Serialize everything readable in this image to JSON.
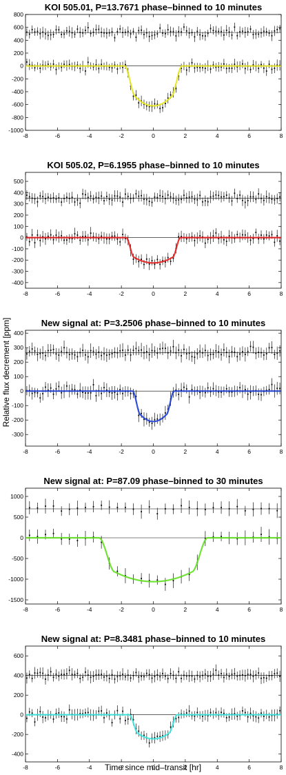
{
  "figure": {
    "ylabel": "Relative flux decrement [ppm]",
    "xlabel": "Time since mid–transit [hr]"
  },
  "chart_data": [
    {
      "type": "scatter",
      "title": "KOI 505.01, P=13.7671 phase–binned to 10 minutes",
      "xlim": [
        -8,
        8
      ],
      "ylim": [
        -1000,
        800
      ],
      "xticks": [
        -8,
        -6,
        -4,
        -2,
        0,
        2,
        4,
        6,
        8
      ],
      "yticks": [
        800,
        600,
        400,
        200,
        0,
        -200,
        -400,
        -600,
        -800,
        -1000
      ],
      "binned_data": true,
      "model": {
        "color": "#e8e820",
        "depth": 620,
        "total_duration": 3.6,
        "ingress": 0.7
      },
      "series": [
        {
          "role": "out-of-transit",
          "level": 520,
          "scatter": 85,
          "errorbar": 70
        },
        {
          "role": "in-transit",
          "level": 0,
          "scatter": 85,
          "errorbar": 70
        }
      ]
    },
    {
      "type": "scatter",
      "title": "KOI 505.02, P=6.1955 phase–binned to 10 minutes",
      "xlim": [
        -8,
        8
      ],
      "ylim": [
        -450,
        580
      ],
      "xticks": [
        -8,
        -6,
        -4,
        -2,
        0,
        2,
        4,
        6,
        8
      ],
      "yticks": [
        500,
        400,
        300,
        200,
        100,
        0,
        -100,
        -200,
        -300,
        -400
      ],
      "binned_data": true,
      "model": {
        "color": "#e52020",
        "depth": 225,
        "total_duration": 3.4,
        "ingress": 0.5
      },
      "series": [
        {
          "role": "out-of-transit",
          "level": 350,
          "scatter": 55,
          "errorbar": 45
        },
        {
          "role": "in-transit",
          "level": 0,
          "scatter": 55,
          "errorbar": 45
        }
      ]
    },
    {
      "type": "scatter",
      "title": "New signal at: P=3.2506 phase–binned to 10 minutes",
      "xlim": [
        -8,
        8
      ],
      "ylim": [
        -380,
        420
      ],
      "xticks": [
        -8,
        -6,
        -4,
        -2,
        0,
        2,
        4,
        6,
        8
      ],
      "yticks": [
        400,
        300,
        200,
        100,
        0,
        -100,
        -200,
        -300
      ],
      "binned_data": true,
      "model": {
        "color": "#2040d8",
        "depth": 210,
        "total_duration": 2.6,
        "ingress": 0.5
      },
      "series": [
        {
          "role": "out-of-transit",
          "level": 265,
          "scatter": 45,
          "errorbar": 40
        },
        {
          "role": "in-transit",
          "level": 0,
          "scatter": 45,
          "errorbar": 40
        }
      ]
    },
    {
      "type": "scatter",
      "title": "New signal at: P=87.09 phase–binned to 30 minutes",
      "xlim": [
        -8,
        8
      ],
      "ylim": [
        -1600,
        1200
      ],
      "xticks": [
        -8,
        -6,
        -4,
        -2,
        0,
        2,
        4,
        6,
        8
      ],
      "yticks": [
        1000,
        500,
        0,
        -500,
        -1000,
        -1500
      ],
      "binned_data": true,
      "model": {
        "color": "#60e020",
        "depth": 1060,
        "total_duration": 6.8,
        "ingress": 1.0
      },
      "series": [
        {
          "role": "out-of-transit",
          "level": 700,
          "scatter": 110,
          "errorbar": 150
        },
        {
          "role": "in-transit",
          "level": 0,
          "scatter": 110,
          "errorbar": 150
        }
      ]
    },
    {
      "type": "scatter",
      "title": "New signal at: P=8.3481 phase–binned to 10 minutes",
      "xlim": [
        -8,
        8
      ],
      "ylim": [
        -480,
        700
      ],
      "xticks": [
        -8,
        -6,
        -4,
        -2,
        0,
        2,
        4,
        6,
        8
      ],
      "yticks": [
        600,
        400,
        200,
        0,
        -200,
        -400
      ],
      "binned_data": true,
      "model": {
        "color": "#40e8e0",
        "depth": 245,
        "total_duration": 3.0,
        "ingress": 0.55
      },
      "series": [
        {
          "role": "out-of-transit",
          "level": 400,
          "scatter": 60,
          "errorbar": 50
        },
        {
          "role": "in-transit",
          "level": 0,
          "scatter": 60,
          "errorbar": 50
        }
      ]
    }
  ]
}
